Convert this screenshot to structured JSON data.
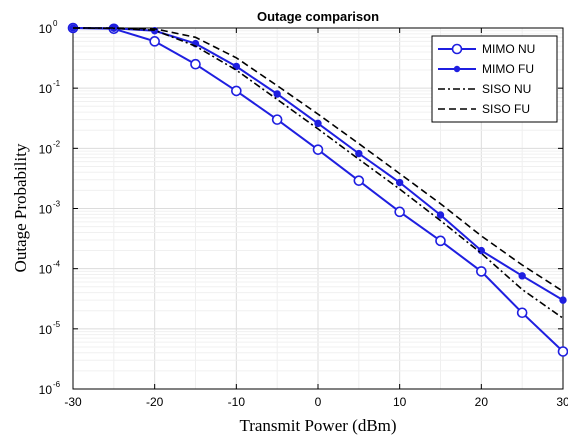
{
  "chart_data": {
    "type": "line",
    "title": "Outage comparison",
    "xlabel": "Transmit Power (dBm)",
    "ylabel": "Outage Probability",
    "xlim": [
      -30,
      30
    ],
    "ylim": [
      1e-06,
      1
    ],
    "yscale": "log",
    "grid": true,
    "legend_position": "top-right",
    "x_ticks": [
      {
        "value": -30,
        "label": "-30"
      },
      {
        "value": -20,
        "label": "-20"
      },
      {
        "value": -10,
        "label": "-10"
      },
      {
        "value": 0,
        "label": "0"
      },
      {
        "value": 10,
        "label": "10"
      },
      {
        "value": 20,
        "label": "20"
      },
      {
        "value": 30,
        "label": "30"
      }
    ],
    "y_ticks": [
      {
        "value": 1,
        "base": "10",
        "exp": "0"
      },
      {
        "value": 0.1,
        "base": "10",
        "exp": "-1"
      },
      {
        "value": 0.01,
        "base": "10",
        "exp": "-2"
      },
      {
        "value": 0.001,
        "base": "10",
        "exp": "-3"
      },
      {
        "value": 0.0001,
        "base": "10",
        "exp": "-4"
      },
      {
        "value": 1e-05,
        "base": "10",
        "exp": "-5"
      },
      {
        "value": 1e-06,
        "base": "10",
        "exp": "-6"
      }
    ],
    "x": [
      -30,
      -25,
      -20,
      -15,
      -10,
      -5,
      0,
      5,
      10,
      15,
      20,
      25,
      30
    ],
    "series": [
      {
        "name": "MIMO NU",
        "color": "#1f1fe0",
        "style": "solid",
        "marker": "circle",
        "values": [
          1.0,
          0.97,
          0.6,
          0.25,
          0.09,
          0.03,
          0.0095,
          0.0029,
          0.00088,
          0.00029,
          9e-05,
          1.85e-05,
          4.2e-06
        ]
      },
      {
        "name": "MIMO FU",
        "color": "#1f1fe0",
        "style": "solid",
        "marker": "dot",
        "values": [
          1.0,
          0.99,
          0.9,
          0.55,
          0.23,
          0.08,
          0.026,
          0.0082,
          0.0027,
          0.00078,
          0.0002,
          7.6e-05,
          3e-05
        ]
      },
      {
        "name": "SISO NU",
        "color": "#000000",
        "style": "dashdot",
        "marker": "none",
        "values": [
          1.0,
          0.99,
          0.92,
          0.5,
          0.2,
          0.065,
          0.021,
          0.0066,
          0.0021,
          0.00063,
          0.00018,
          4.5e-05,
          1.5e-05
        ]
      },
      {
        "name": "SISO FU",
        "color": "#000000",
        "style": "dashed",
        "marker": "none",
        "values": [
          1.0,
          1.0,
          0.97,
          0.7,
          0.32,
          0.11,
          0.037,
          0.012,
          0.0038,
          0.0012,
          0.00035,
          0.000115,
          4.2e-05
        ]
      }
    ]
  }
}
